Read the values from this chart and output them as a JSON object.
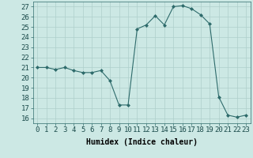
{
  "x": [
    0,
    1,
    2,
    3,
    4,
    5,
    6,
    7,
    8,
    9,
    10,
    11,
    12,
    13,
    14,
    15,
    16,
    17,
    18,
    19,
    20,
    21,
    22,
    23
  ],
  "y": [
    21,
    21,
    20.8,
    21,
    20.7,
    20.5,
    20.5,
    20.7,
    19.7,
    17.3,
    17.3,
    24.8,
    25.2,
    26.1,
    25.2,
    27,
    27.1,
    26.8,
    26.2,
    25.3,
    18.1,
    16.3,
    16.1,
    16.3
  ],
  "line_color": "#2e6b6b",
  "marker": "D",
  "marker_size": 2,
  "bg_color": "#cce8e4",
  "grid_color": "#aecfcb",
  "xlabel": "Humidex (Indice chaleur)",
  "ylabel_ticks": [
    16,
    17,
    18,
    19,
    20,
    21,
    22,
    23,
    24,
    25,
    26,
    27
  ],
  "xlim": [
    -0.5,
    23.5
  ],
  "ylim": [
    15.5,
    27.5
  ],
  "xticks": [
    0,
    1,
    2,
    3,
    4,
    5,
    6,
    7,
    8,
    9,
    10,
    11,
    12,
    13,
    14,
    15,
    16,
    17,
    18,
    19,
    20,
    21,
    22,
    23
  ],
  "xtick_labels": [
    "0",
    "1",
    "2",
    "3",
    "4",
    "5",
    "6",
    "7",
    "8",
    "9",
    "10",
    "11",
    "12",
    "13",
    "14",
    "15",
    "16",
    "17",
    "18",
    "19",
    "20",
    "21",
    "22",
    "23"
  ],
  "xlabel_fontsize": 7,
  "tick_fontsize": 6.5
}
